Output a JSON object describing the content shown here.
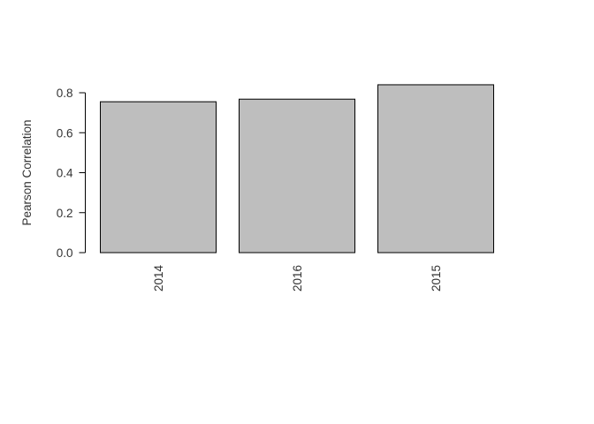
{
  "chart_data": {
    "type": "bar",
    "title": "",
    "xlabel": "",
    "ylabel": "Pearson Correlation",
    "categories": [
      "2014",
      "2016",
      "2015"
    ],
    "values": [
      0.755,
      0.768,
      0.84
    ],
    "ylim": [
      0,
      0.8
    ],
    "yticks": [
      "0.0",
      "0.2",
      "0.4",
      "0.6",
      "0.8"
    ],
    "grid": false,
    "legend": "none",
    "bar_color": "#bebebe",
    "x_tick_orientation": "vertical"
  }
}
